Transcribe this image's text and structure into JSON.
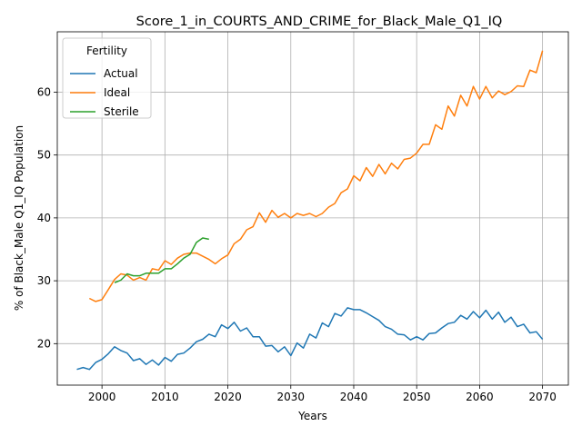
{
  "chart_data": {
    "type": "line",
    "title": "Score_1_in_COURTS_AND_CRIME_for_Black_Male_Q1_IQ",
    "xlabel": "Years",
    "ylabel": "% of Black_Male Q1_IQ Population",
    "xlim": [
      1992.9,
      2074.1
    ],
    "ylim": [
      13.4,
      69.6
    ],
    "xticks": [
      2000,
      2010,
      2020,
      2030,
      2040,
      2050,
      2060,
      2070
    ],
    "yticks": [
      20,
      30,
      40,
      50,
      60
    ],
    "grid": true,
    "legend": {
      "title": "Fertility",
      "placement": "upper-left"
    },
    "series": [
      {
        "name": "Actual",
        "color": "#1f77b4",
        "x": [
          1996,
          1997,
          1998,
          1999,
          2000,
          2001,
          2002,
          2003,
          2004,
          2005,
          2006,
          2007,
          2008,
          2009,
          2010,
          2011,
          2012,
          2013,
          2014,
          2015,
          2016,
          2017,
          2018,
          2019,
          2020,
          2021,
          2022,
          2023,
          2024,
          2025,
          2026,
          2027,
          2028,
          2029,
          2030,
          2031,
          2032,
          2033,
          2034,
          2035,
          2036,
          2037,
          2038,
          2039,
          2040,
          2041,
          2042,
          2043,
          2044,
          2045,
          2046,
          2047,
          2048,
          2049,
          2050,
          2051,
          2052,
          2053,
          2054,
          2055,
          2056,
          2057,
          2058,
          2059,
          2060,
          2061,
          2062,
          2063,
          2064,
          2065,
          2066,
          2067,
          2068,
          2069,
          2070
        ],
        "values": [
          15.9,
          16.2,
          15.9,
          17.0,
          17.5,
          18.4,
          19.5,
          18.9,
          18.5,
          17.3,
          17.6,
          16.7,
          17.4,
          16.6,
          17.8,
          17.2,
          18.3,
          18.5,
          19.3,
          20.3,
          20.7,
          21.5,
          21.1,
          23.0,
          22.4,
          23.4,
          22.0,
          22.5,
          21.1,
          21.1,
          19.6,
          19.7,
          18.7,
          19.5,
          18.1,
          20.1,
          19.3,
          21.5,
          20.9,
          23.3,
          22.7,
          24.8,
          24.4,
          25.7,
          25.4,
          25.4,
          24.9,
          24.3,
          23.7,
          22.7,
          22.3,
          21.5,
          21.4,
          20.6,
          21.1,
          20.6,
          21.6,
          21.7,
          22.5,
          23.2,
          23.4,
          24.5,
          23.9,
          25.1,
          24.1,
          25.3,
          23.9,
          25.0,
          23.4,
          24.2,
          22.7,
          23.1,
          21.7,
          21.9,
          20.7
        ]
      },
      {
        "name": "Ideal",
        "color": "#ff7f0e",
        "x": [
          1998,
          1999,
          2000,
          2001,
          2002,
          2003,
          2004,
          2005,
          2006,
          2007,
          2008,
          2009,
          2010,
          2011,
          2012,
          2013,
          2014,
          2015,
          2016,
          2017,
          2018,
          2019,
          2020,
          2021,
          2022,
          2023,
          2024,
          2025,
          2026,
          2027,
          2028,
          2029,
          2030,
          2031,
          2032,
          2033,
          2034,
          2035,
          2036,
          2037,
          2038,
          2039,
          2040,
          2041,
          2042,
          2043,
          2044,
          2045,
          2046,
          2047,
          2048,
          2049,
          2050,
          2051,
          2052,
          2053,
          2054,
          2055,
          2056,
          2057,
          2058,
          2059,
          2060,
          2061,
          2062,
          2063,
          2064,
          2065,
          2066,
          2067,
          2068,
          2069,
          2070
        ],
        "values": [
          27.2,
          26.7,
          27.0,
          28.6,
          30.2,
          31.1,
          30.9,
          30.1,
          30.5,
          30.1,
          31.9,
          31.7,
          33.2,
          32.6,
          33.6,
          34.2,
          34.4,
          34.4,
          33.9,
          33.4,
          32.7,
          33.5,
          34.1,
          35.9,
          36.6,
          38.1,
          38.6,
          40.8,
          39.3,
          41.2,
          40.1,
          40.7,
          40.0,
          40.7,
          40.4,
          40.7,
          40.2,
          40.7,
          41.7,
          42.3,
          44.0,
          44.6,
          46.7,
          45.9,
          48.0,
          46.6,
          48.5,
          47.0,
          48.7,
          47.8,
          49.3,
          49.5,
          50.3,
          51.7,
          51.7,
          54.8,
          54.1,
          57.8,
          56.2,
          59.5,
          57.8,
          60.9,
          58.9,
          60.9,
          59.1,
          60.2,
          59.6,
          60.1,
          61.0,
          60.9,
          63.5,
          63.1,
          66.6
        ]
      },
      {
        "name": "Sterile",
        "color": "#2ca02c",
        "x": [
          2002,
          2003,
          2004,
          2005,
          2006,
          2007,
          2008,
          2009,
          2010,
          2011,
          2012,
          2013,
          2014,
          2015,
          2016,
          2017
        ],
        "values": [
          29.7,
          30.1,
          31.1,
          30.8,
          30.8,
          31.2,
          31.2,
          31.2,
          31.9,
          31.9,
          32.7,
          33.6,
          34.2,
          36.1,
          36.8,
          36.6
        ]
      }
    ]
  }
}
